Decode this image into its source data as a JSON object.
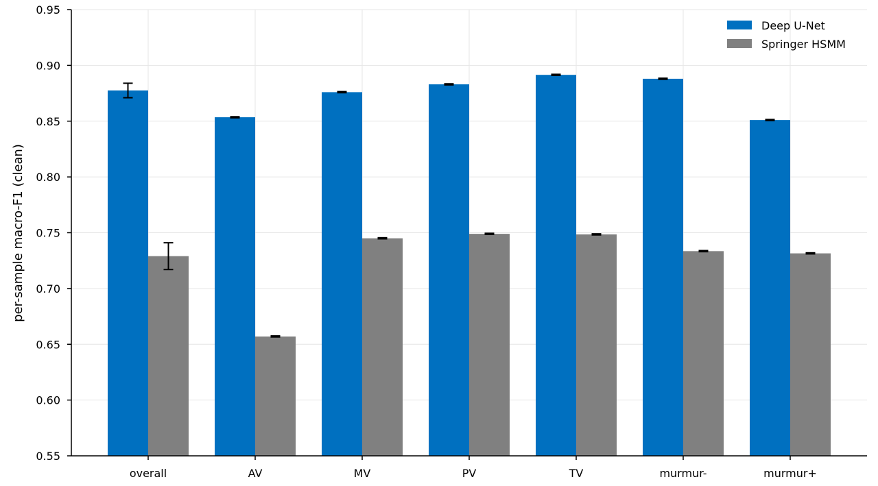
{
  "chart_data": {
    "type": "bar",
    "ylabel": "per-sample macro-F1 (clean)",
    "xlabel": "",
    "ylim": [
      0.55,
      0.95
    ],
    "yticks": [
      "0.55",
      "0.60",
      "0.65",
      "0.70",
      "0.75",
      "0.80",
      "0.85",
      "0.90",
      "0.95"
    ],
    "categories": [
      "overall",
      "AV",
      "MV",
      "PV",
      "TV",
      "murmur-",
      "murmur+"
    ],
    "series": [
      {
        "name": "Deep U-Net",
        "color": "#0070c0",
        "values": [
          0.8775,
          0.8535,
          0.876,
          0.883,
          0.8915,
          0.888,
          0.851
        ],
        "errors": [
          0.0065,
          0.0005,
          0.0005,
          0.0005,
          0.0005,
          0.0005,
          0.0005
        ]
      },
      {
        "name": "Springer HSMM",
        "color": "#808080",
        "values": [
          0.729,
          0.657,
          0.745,
          0.749,
          0.7485,
          0.7335,
          0.7315
        ],
        "errors": [
          0.012,
          0.0005,
          0.0005,
          0.0005,
          0.0005,
          0.0005,
          0.0005
        ]
      }
    ],
    "grid": true,
    "legend_position": "top-right"
  }
}
